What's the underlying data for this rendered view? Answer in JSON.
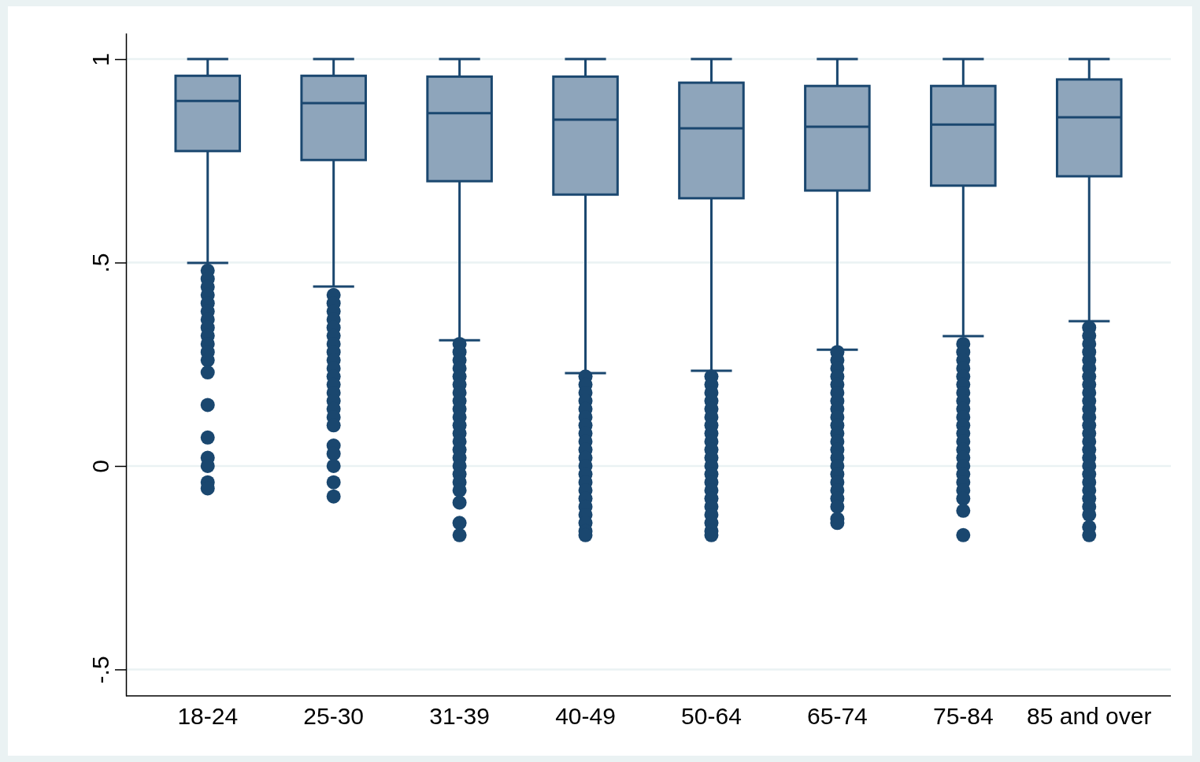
{
  "chart_data": {
    "type": "box",
    "categories": [
      "18-24",
      "25-30",
      "31-39",
      "40-49",
      "50-64",
      "65-74",
      "75-84",
      "85 and over"
    ],
    "series": [
      {
        "color": "#8ea5bb",
        "boxes": [
          {
            "low": 0.499,
            "q1": 0.774,
            "median": 0.897,
            "q3": 0.959,
            "high": 1,
            "outliers": [
              0.48,
              0.46,
              0.44,
              0.42,
              0.4,
              0.38,
              0.36,
              0.34,
              0.32,
              0.3,
              0.28,
              0.26,
              0.23,
              0.15,
              0.07,
              0.02,
              0,
              -0.04,
              -0.055
            ]
          },
          {
            "low": 0.441,
            "q1": 0.752,
            "median": 0.892,
            "q3": 0.959,
            "high": 1,
            "outliers": [
              0.42,
              0.4,
              0.38,
              0.36,
              0.34,
              0.32,
              0.3,
              0.28,
              0.26,
              0.24,
              0.22,
              0.2,
              0.18,
              0.16,
              0.14,
              0.12,
              0.1,
              0.05,
              0.03,
              0,
              -0.04,
              -0.075
            ]
          },
          {
            "low": 0.309,
            "q1": 0.7,
            "median": 0.867,
            "q3": 0.957,
            "high": 1,
            "outliers": [
              0.3,
              0.28,
              0.26,
              0.24,
              0.22,
              0.2,
              0.18,
              0.16,
              0.14,
              0.12,
              0.1,
              0.08,
              0.06,
              0.04,
              0.02,
              0,
              -0.02,
              -0.04,
              -0.06,
              -0.09,
              -0.14,
              -0.17
            ]
          },
          {
            "low": 0.228,
            "q1": 0.667,
            "median": 0.851,
            "q3": 0.957,
            "high": 1,
            "outliers": [
              0.22,
              0.2,
              0.18,
              0.16,
              0.14,
              0.12,
              0.1,
              0.08,
              0.06,
              0.04,
              0.02,
              0,
              -0.02,
              -0.04,
              -0.06,
              -0.08,
              -0.1,
              -0.12,
              -0.14,
              -0.16,
              -0.17
            ]
          },
          {
            "low": 0.234,
            "q1": 0.658,
            "median": 0.83,
            "q3": 0.942,
            "high": 1,
            "outliers": [
              0.22,
              0.2,
              0.18,
              0.16,
              0.14,
              0.12,
              0.1,
              0.08,
              0.06,
              0.04,
              0.02,
              0,
              -0.02,
              -0.04,
              -0.06,
              -0.08,
              -0.1,
              -0.12,
              -0.14,
              -0.16,
              -0.17
            ]
          },
          {
            "low": 0.286,
            "q1": 0.677,
            "median": 0.834,
            "q3": 0.934,
            "high": 1,
            "outliers": [
              0.28,
              0.26,
              0.24,
              0.22,
              0.2,
              0.18,
              0.16,
              0.14,
              0.12,
              0.1,
              0.08,
              0.06,
              0.04,
              0.02,
              0,
              -0.02,
              -0.04,
              -0.06,
              -0.08,
              -0.1,
              -0.13,
              -0.14
            ]
          },
          {
            "low": 0.319,
            "q1": 0.689,
            "median": 0.839,
            "q3": 0.934,
            "high": 1,
            "outliers": [
              0.3,
              0.28,
              0.26,
              0.24,
              0.22,
              0.2,
              0.18,
              0.16,
              0.14,
              0.12,
              0.1,
              0.08,
              0.06,
              0.04,
              0.02,
              0,
              -0.02,
              -0.04,
              -0.06,
              -0.08,
              -0.11,
              -0.17
            ]
          },
          {
            "low": 0.356,
            "q1": 0.712,
            "median": 0.857,
            "q3": 0.95,
            "high": 1,
            "outliers": [
              0.34,
              0.32,
              0.3,
              0.28,
              0.26,
              0.24,
              0.22,
              0.2,
              0.18,
              0.16,
              0.14,
              0.12,
              0.1,
              0.08,
              0.06,
              0.04,
              0.02,
              0,
              -0.02,
              -0.04,
              -0.06,
              -0.08,
              -0.1,
              -0.12,
              -0.15,
              -0.17
            ]
          }
        ]
      }
    ],
    "ylim": [
      -0.565,
      1.064
    ],
    "yticks": [
      {
        "value": -0.5,
        "label": "-.5"
      },
      0,
      {
        "value": 0.5,
        "label": ".5"
      },
      1
    ],
    "grid": "y"
  }
}
